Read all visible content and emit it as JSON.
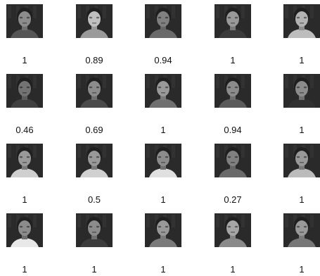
{
  "grid": {
    "rows": 4,
    "columns": 5
  },
  "items": [
    {
      "score": "1",
      "image": "face-thumbnail",
      "shirt": "#555555",
      "brightness": 0.55
    },
    {
      "score": "0.89",
      "image": "face-thumbnail",
      "shirt": "#9a9a9a",
      "brightness": 0.75
    },
    {
      "score": "0.94",
      "image": "face-thumbnail",
      "shirt": "#6a6a6a",
      "brightness": 0.5
    },
    {
      "score": "1",
      "image": "face-thumbnail",
      "shirt": "#3a3a3a",
      "brightness": 0.6
    },
    {
      "score": "1",
      "image": "face-thumbnail",
      "shirt": "#bdbdbd",
      "brightness": 0.7
    },
    {
      "score": "0.46",
      "image": "face-thumbnail",
      "shirt": "#404040",
      "brightness": 0.45
    },
    {
      "score": "0.69",
      "image": "face-thumbnail",
      "shirt": "#4a4a4a",
      "brightness": 0.55
    },
    {
      "score": "1",
      "image": "face-thumbnail",
      "shirt": "#707070",
      "brightness": 0.6
    },
    {
      "score": "0.94",
      "image": "face-thumbnail",
      "shirt": "#5a5a5a",
      "brightness": 0.55
    },
    {
      "score": "1",
      "image": "face-thumbnail",
      "shirt": "#303030",
      "brightness": 0.55
    },
    {
      "score": "1",
      "image": "face-thumbnail",
      "shirt": "#cfcfcf",
      "brightness": 0.6
    },
    {
      "score": "0.5",
      "image": "face-thumbnail",
      "shirt": "#d0d0d0",
      "brightness": 0.6
    },
    {
      "score": "1",
      "image": "face-thumbnail",
      "shirt": "#e0e0e0",
      "brightness": 0.55
    },
    {
      "score": "0.27",
      "image": "face-thumbnail",
      "shirt": "#6a6a6a",
      "brightness": 0.5
    },
    {
      "score": "1",
      "image": "face-thumbnail",
      "shirt": "#bbbbbb",
      "brightness": 0.6
    },
    {
      "score": "1",
      "image": "face-thumbnail",
      "shirt": "#e8e8e8",
      "brightness": 0.55
    },
    {
      "score": "1",
      "image": "face-thumbnail",
      "shirt": "#3c3c3c",
      "brightness": 0.55
    },
    {
      "score": "1",
      "image": "face-thumbnail",
      "shirt": "#7a7a7a",
      "brightness": 0.6
    },
    {
      "score": "1",
      "image": "face-thumbnail",
      "shirt": "#8a8a8a",
      "brightness": 0.65
    },
    {
      "score": "1",
      "image": "face-thumbnail",
      "shirt": "#777777",
      "brightness": 0.6
    }
  ]
}
